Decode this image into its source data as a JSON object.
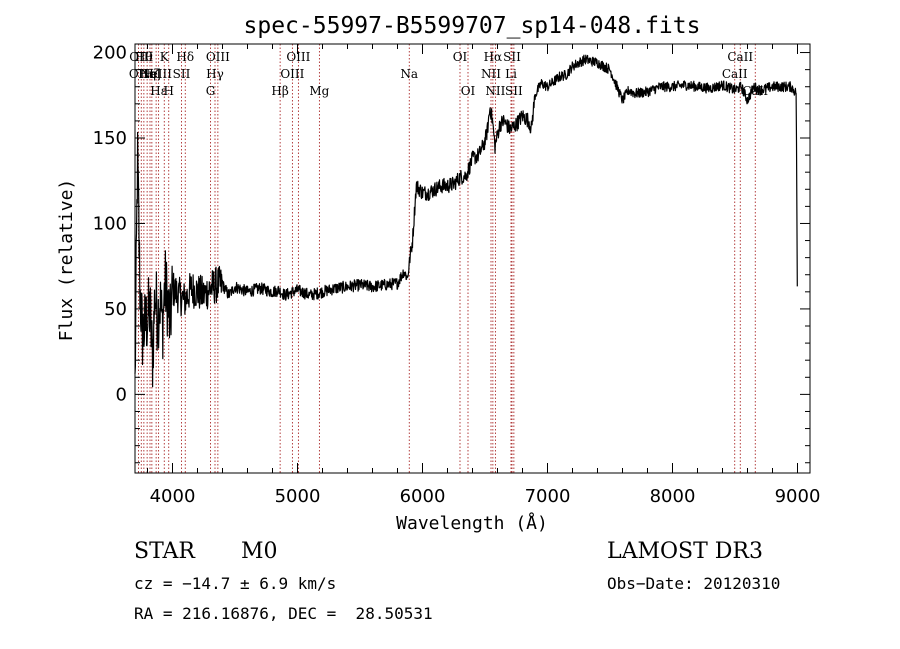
{
  "chart_data": {
    "type": "line",
    "title": "spec-55997-B5599707_sp14-048.fits",
    "xlabel": "Wavelength (Å)",
    "ylabel": "Flux (relative)",
    "xlim": [
      3700,
      9100
    ],
    "ylim": [
      -46,
      205
    ],
    "xticks": [
      4000,
      5000,
      6000,
      7000,
      8000,
      9000
    ],
    "yticks": [
      0,
      50,
      100,
      150,
      200
    ],
    "series": [
      {
        "name": "spectrum",
        "x": [
          3700,
          3720,
          3740,
          3760,
          3780,
          3800,
          3820,
          3840,
          3860,
          3880,
          3900,
          3920,
          3940,
          3960,
          3980,
          4000,
          4050,
          4100,
          4150,
          4200,
          4250,
          4300,
          4350,
          4400,
          4450,
          4500,
          4600,
          4700,
          4800,
          4850,
          4900,
          5000,
          5100,
          5200,
          5300,
          5400,
          5500,
          5600,
          5700,
          5800,
          5850,
          5880,
          5900,
          5920,
          5950,
          6000,
          6050,
          6100,
          6150,
          6200,
          6250,
          6300,
          6350,
          6400,
          6450,
          6500,
          6520,
          6540,
          6560,
          6580,
          6600,
          6620,
          6650,
          6700,
          6750,
          6800,
          6850,
          6870,
          6900,
          6950,
          7000,
          7050,
          7100,
          7150,
          7200,
          7300,
          7400,
          7500,
          7600,
          7650,
          7700,
          7800,
          7900,
          8000,
          8100,
          8200,
          8300,
          8400,
          8500,
          8550,
          8600,
          8650,
          8700,
          8800,
          8900,
          8950,
          8990,
          9000
        ],
        "y": [
          5,
          140,
          60,
          35,
          40,
          45,
          50,
          20,
          60,
          45,
          55,
          40,
          65,
          55,
          40,
          62,
          58,
          55,
          62,
          60,
          58,
          62,
          64,
          64,
          58,
          63,
          60,
          62,
          60,
          61,
          58,
          61,
          58,
          60,
          62,
          63,
          64,
          63,
          64,
          65,
          72,
          68,
          80,
          90,
          122,
          118,
          118,
          120,
          122,
          122,
          123,
          127,
          128,
          138,
          140,
          148,
          155,
          168,
          160,
          145,
          152,
          158,
          160,
          155,
          158,
          163,
          160,
          155,
          175,
          182,
          180,
          183,
          186,
          187,
          192,
          196,
          194,
          190,
          172,
          178,
          176,
          177,
          180,
          180,
          181,
          180,
          179,
          181,
          178,
          180,
          172,
          180,
          178,
          180,
          180,
          180,
          176,
          35
        ]
      }
    ],
    "lines": [
      {
        "wl": 3728,
        "label": "OII",
        "row": 1
      },
      {
        "wl": 3750,
        "label": "OIII",
        "row": 0
      },
      {
        "wl": 3771,
        "label": "Hθ",
        "row": 0
      },
      {
        "wl": 3797,
        "label": "Hη",
        "row": 1
      },
      {
        "wl": 3820,
        "label": "HeI",
        "row": 1
      },
      {
        "wl": 3835,
        "label": "Hζ",
        "row": 1
      },
      {
        "wl": 3869,
        "label": "NeIII",
        "row": 1
      },
      {
        "wl": 3889,
        "label": "Hε",
        "row": 2
      },
      {
        "wl": 3934,
        "label": "K",
        "row": 0
      },
      {
        "wl": 3970,
        "label": "H",
        "row": 2
      },
      {
        "wl": 4072,
        "label": "SII",
        "row": 1
      },
      {
        "wl": 4102,
        "label": "Hδ",
        "row": 0
      },
      {
        "wl": 4304,
        "label": "G",
        "row": 2
      },
      {
        "wl": 4340,
        "label": "Hγ",
        "row": 1
      },
      {
        "wl": 4363,
        "label": "OIII",
        "row": 0
      },
      {
        "wl": 4861,
        "label": "Hβ",
        "row": 2
      },
      {
        "wl": 4959,
        "label": "OIII",
        "row": 1
      },
      {
        "wl": 5007,
        "label": "OIII",
        "row": 0
      },
      {
        "wl": 5175,
        "label": "Mg",
        "row": 2
      },
      {
        "wl": 5894,
        "label": "Na",
        "row": 1
      },
      {
        "wl": 6300,
        "label": "OI",
        "row": 0
      },
      {
        "wl": 6364,
        "label": "OI",
        "row": 2
      },
      {
        "wl": 6548,
        "label": "NII",
        "row": 1
      },
      {
        "wl": 6563,
        "label": "Hα",
        "row": 0
      },
      {
        "wl": 6583,
        "label": "NII",
        "row": 2
      },
      {
        "wl": 6708,
        "label": "Li",
        "row": 1
      },
      {
        "wl": 6716,
        "label": "SII",
        "row": 0
      },
      {
        "wl": 6731,
        "label": "SII",
        "row": 2
      },
      {
        "wl": 8498,
        "label": "CaII",
        "row": 1
      },
      {
        "wl": 8542,
        "label": "CaII",
        "row": 0
      },
      {
        "wl": 8662,
        "label": "CaII",
        "row": 2
      }
    ]
  },
  "info": {
    "class": "STAR",
    "subclass": "M0",
    "survey": "LAMOST DR3",
    "cz": "cz = −14.7 ± 6.9 km/s",
    "obs_date": "Obs−Date: 20120310",
    "coords": "RA = 216.16876, DEC =  28.50531"
  }
}
